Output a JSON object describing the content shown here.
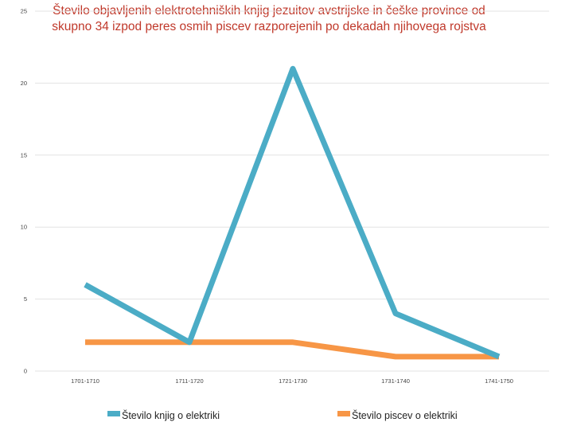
{
  "chart_data": {
    "type": "line",
    "title_lines": [
      "Število objavljenih elektrotehniških knjig jezuitov avstrijske in češke province od",
      "skupno 34 izpod peres osmih piscev razporejenih po dekadah njihovega rojstva"
    ],
    "categories": [
      "1701-1710",
      "1711-1720",
      "1721-1730",
      "1731-1740",
      "1741-1750"
    ],
    "series": [
      {
        "name": "Število knjig o elektriki",
        "values": [
          6,
          2,
          21,
          4,
          1
        ],
        "color": "#4bacc6"
      },
      {
        "name": "Število piscev o elektriki",
        "values": [
          2,
          2,
          2,
          1,
          1
        ],
        "color": "#f79646"
      }
    ],
    "ylim": [
      0,
      25
    ],
    "yticks": [
      "0",
      "5",
      "10",
      "15",
      "20",
      "25"
    ],
    "grid": true,
    "legend_position": "bottom",
    "title_color": "#c0392b",
    "grid_color": "#e3e3e3"
  }
}
